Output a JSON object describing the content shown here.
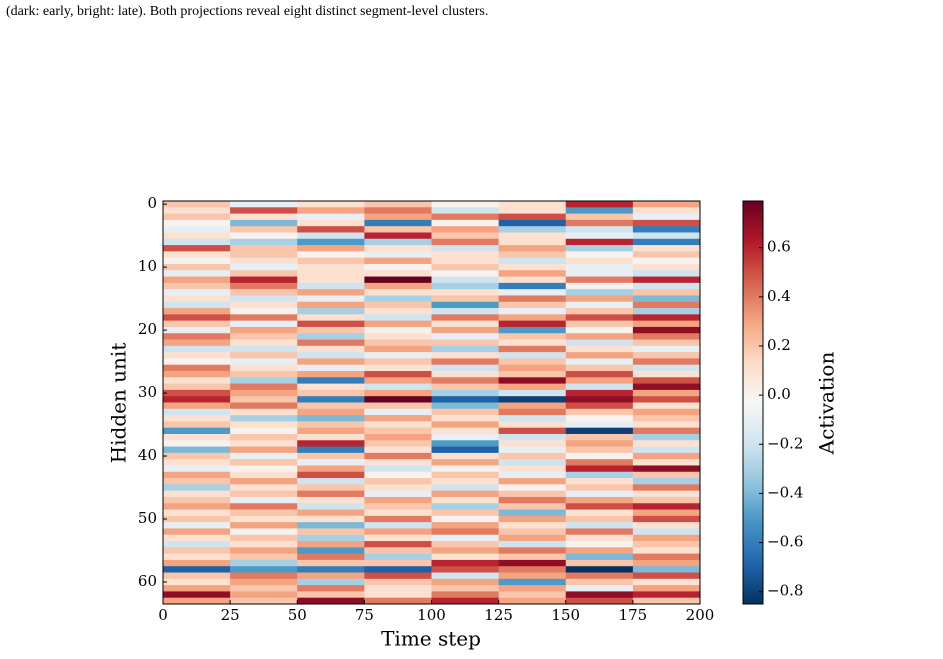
{
  "caption": "(dark: early, bright: late). Both projections reveal eight distinct segment-level clusters.",
  "chart_data": {
    "type": "heatmap",
    "xlabel": "Time step",
    "ylabel": "Hidden unit",
    "xlim": [
      0,
      200
    ],
    "xticks": [
      0,
      25,
      50,
      75,
      100,
      125,
      150,
      175,
      200
    ],
    "ylim": [
      63.5,
      -0.5
    ],
    "yticks": [
      0,
      10,
      20,
      30,
      40,
      50,
      60
    ],
    "xbins": [
      0,
      25,
      50,
      75,
      100,
      125,
      150,
      175,
      200
    ],
    "colormap": "RdBu_r",
    "colorbar": {
      "label": "Activation",
      "lim": [
        -0.85,
        0.79
      ],
      "ticks": [
        {
          "value": -0.8,
          "label": "−0.8"
        },
        {
          "value": -0.6,
          "label": "−0.6"
        },
        {
          "value": -0.4,
          "label": "−0.4"
        },
        {
          "value": -0.2,
          "label": "−0.2"
        },
        {
          "value": 0,
          "label": "0.0"
        },
        0.2,
        0.4,
        0.6
      ]
    },
    "values": [
      [
        0.2,
        -0.1,
        0.1,
        0.2,
        0.0,
        0.1,
        0.6,
        0.3
      ],
      [
        0.1,
        0.5,
        0.3,
        0.4,
        -0.2,
        0.1,
        -0.5,
        0.1
      ],
      [
        0.2,
        0.1,
        -0.1,
        0.3,
        0.4,
        0.5,
        0.2,
        -0.1
      ],
      [
        0.0,
        -0.4,
        0.1,
        -0.6,
        0.0,
        -0.7,
        0.4,
        0.5
      ],
      [
        -0.1,
        0.2,
        0.5,
        0.2,
        0.3,
        -0.3,
        -0.2,
        -0.6
      ],
      [
        0.1,
        0.0,
        -0.2,
        0.6,
        0.2,
        0.1,
        -0.1,
        -0.2
      ],
      [
        -0.2,
        -0.3,
        -0.5,
        -0.3,
        0.4,
        0.1,
        0.6,
        -0.6
      ],
      [
        0.5,
        0.2,
        0.3,
        0.1,
        -0.2,
        0.3,
        -0.3,
        0.1
      ],
      [
        0.1,
        0.2,
        0.0,
        -0.1,
        0.1,
        0.2,
        0.0,
        0.2
      ],
      [
        0.0,
        0.1,
        0.2,
        0.3,
        0.1,
        -0.2,
        0.1,
        0.0
      ],
      [
        0.2,
        -0.1,
        0.1,
        0.0,
        0.2,
        0.1,
        -0.1,
        0.1
      ],
      [
        -0.1,
        0.2,
        0.1,
        0.1,
        0.0,
        0.3,
        -0.1,
        -0.2
      ],
      [
        0.3,
        0.6,
        0.1,
        0.79,
        -0.2,
        0.1,
        0.4,
        0.6
      ],
      [
        0.2,
        0.4,
        -0.2,
        0.3,
        -0.3,
        -0.6,
        0.0,
        -0.2
      ],
      [
        -0.1,
        0.2,
        0.3,
        0.1,
        0.1,
        -0.1,
        -0.3,
        0.2
      ],
      [
        0.1,
        -0.2,
        -0.1,
        -0.3,
        0.2,
        0.4,
        0.3,
        -0.4
      ],
      [
        -0.2,
        0.1,
        0.3,
        0.2,
        -0.5,
        0.2,
        -0.1,
        0.4
      ],
      [
        0.3,
        0.0,
        -0.3,
        0.1,
        -0.2,
        -0.1,
        0.2,
        -0.3
      ],
      [
        0.5,
        0.4,
        0.1,
        -0.2,
        0.4,
        0.3,
        0.5,
        0.6
      ],
      [
        0.2,
        -0.1,
        0.5,
        0.3,
        0.1,
        0.6,
        0.2,
        0.3
      ],
      [
        -0.1,
        0.3,
        0.2,
        0.0,
        0.3,
        -0.5,
        0.0,
        0.7
      ],
      [
        0.4,
        0.2,
        -0.3,
        0.1,
        -0.1,
        0.2,
        0.3,
        0.4
      ],
      [
        0.3,
        0.1,
        0.4,
        0.2,
        0.2,
        0.1,
        -0.2,
        0.2
      ],
      [
        -0.2,
        -0.2,
        0.1,
        0.3,
        -0.3,
        0.4,
        0.1,
        -0.1
      ],
      [
        0.1,
        0.2,
        -0.2,
        -0.1,
        0.1,
        -0.2,
        0.3,
        0.2
      ],
      [
        0.0,
        -0.1,
        0.3,
        0.2,
        0.4,
        0.2,
        -0.1,
        0.4
      ],
      [
        0.4,
        0.1,
        -0.1,
        0.1,
        -0.2,
        0.3,
        0.2,
        -0.2
      ],
      [
        0.3,
        0.2,
        0.3,
        0.5,
        0.1,
        0.2,
        0.5,
        0.1
      ],
      [
        0.1,
        -0.3,
        -0.6,
        0.3,
        0.4,
        0.7,
        0.3,
        0.5
      ],
      [
        0.2,
        0.4,
        0.1,
        -0.2,
        0.2,
        0.3,
        -0.2,
        0.7
      ],
      [
        0.5,
        0.3,
        0.2,
        0.3,
        -0.3,
        -0.2,
        0.6,
        0.3
      ],
      [
        0.6,
        0.2,
        -0.6,
        0.79,
        -0.7,
        -0.8,
        0.7,
        0.5
      ],
      [
        0.3,
        0.4,
        0.2,
        0.2,
        -0.4,
        0.3,
        0.5,
        0.1
      ],
      [
        -0.2,
        0.1,
        0.3,
        -0.1,
        0.2,
        0.4,
        0.2,
        0.3
      ],
      [
        0.1,
        -0.3,
        -0.4,
        0.3,
        0.1,
        -0.2,
        0.0,
        0.2
      ],
      [
        0.2,
        0.1,
        0.2,
        0.1,
        0.3,
        0.1,
        -0.1,
        0.1
      ],
      [
        -0.5,
        0.0,
        0.3,
        0.2,
        0.1,
        0.5,
        -0.8,
        0.4
      ],
      [
        0.1,
        0.2,
        0.1,
        0.3,
        -0.1,
        -0.2,
        0.2,
        -0.3
      ],
      [
        0.0,
        0.1,
        0.6,
        0.2,
        -0.5,
        0.1,
        0.3,
        0.1
      ],
      [
        -0.4,
        0.3,
        -0.6,
        0.1,
        -0.7,
        -0.1,
        0.2,
        -0.2
      ],
      [
        0.2,
        -0.1,
        0.2,
        0.4,
        0.1,
        0.2,
        0.0,
        0.3
      ],
      [
        0.1,
        0.2,
        -0.1,
        0.1,
        0.3,
        -0.2,
        0.4,
        0.1
      ],
      [
        -0.1,
        0.0,
        0.3,
        -0.2,
        0.0,
        0.1,
        0.6,
        0.7
      ],
      [
        0.3,
        0.1,
        0.5,
        0.0,
        0.2,
        -0.1,
        -0.3,
        0.2
      ],
      [
        0.2,
        0.3,
        -0.2,
        0.2,
        0.1,
        0.3,
        0.1,
        -0.3
      ],
      [
        -0.3,
        0.1,
        0.2,
        0.1,
        -0.2,
        0.0,
        0.2,
        0.4
      ],
      [
        0.1,
        0.2,
        0.4,
        -0.1,
        0.3,
        0.2,
        -0.1,
        0.1
      ],
      [
        0.2,
        -0.1,
        0.1,
        0.3,
        0.1,
        0.4,
        0.3,
        0.2
      ],
      [
        0.3,
        0.4,
        -0.2,
        0.2,
        -0.3,
        0.2,
        0.5,
        0.6
      ],
      [
        0.1,
        0.2,
        0.3,
        0.1,
        0.2,
        -0.4,
        0.1,
        0.3
      ],
      [
        0.2,
        0.1,
        0.1,
        0.4,
        0.0,
        0.3,
        0.2,
        0.5
      ],
      [
        -0.1,
        0.3,
        -0.4,
        -0.2,
        0.3,
        0.1,
        -0.2,
        0.1
      ],
      [
        0.3,
        0.0,
        0.2,
        0.3,
        0.4,
        0.2,
        0.4,
        -0.2
      ],
      [
        0.1,
        0.2,
        -0.3,
        0.1,
        -0.1,
        0.3,
        0.1,
        0.3
      ],
      [
        -0.2,
        0.1,
        0.3,
        0.5,
        0.2,
        -0.2,
        0.0,
        0.2
      ],
      [
        0.2,
        0.3,
        -0.5,
        0.2,
        0.3,
        0.4,
        0.3,
        0.1
      ],
      [
        0.1,
        0.2,
        0.4,
        -0.3,
        0.1,
        0.2,
        -0.4,
        0.4
      ],
      [
        0.3,
        -0.3,
        0.2,
        0.2,
        0.6,
        0.7,
        0.2,
        0.3
      ],
      [
        -0.7,
        -0.5,
        -0.6,
        -0.7,
        0.5,
        0.4,
        -0.85,
        -0.4
      ],
      [
        0.2,
        0.4,
        0.3,
        0.5,
        -0.2,
        0.3,
        0.4,
        0.5
      ],
      [
        0.1,
        0.3,
        -0.3,
        0.2,
        0.3,
        -0.5,
        0.2,
        0.1
      ],
      [
        0.3,
        0.2,
        0.4,
        0.1,
        0.2,
        0.3,
        -0.1,
        0.3
      ],
      [
        0.7,
        0.3,
        0.2,
        0.1,
        0.4,
        0.2,
        0.7,
        0.6
      ],
      [
        0.3,
        0.2,
        0.7,
        0.4,
        0.6,
        0.3,
        0.5,
        0.2
      ]
    ]
  }
}
